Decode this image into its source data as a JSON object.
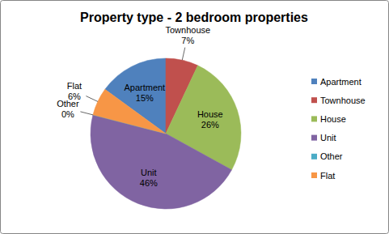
{
  "chart_data": {
    "type": "pie",
    "title": "Property type - 2 bedroom properties",
    "categories": [
      "Apartment",
      "Townhouse",
      "House",
      "Unit",
      "Other",
      "Flat"
    ],
    "values": [
      15,
      7,
      26,
      46,
      0,
      6
    ],
    "value_labels": [
      "15%",
      "7%",
      "26%",
      "46%",
      "0%",
      "6%"
    ],
    "colors": [
      "#4f81bd",
      "#c0504d",
      "#9bbb59",
      "#8064a2",
      "#4bacc6",
      "#f79646"
    ],
    "data_labels": true,
    "legend": "right"
  }
}
